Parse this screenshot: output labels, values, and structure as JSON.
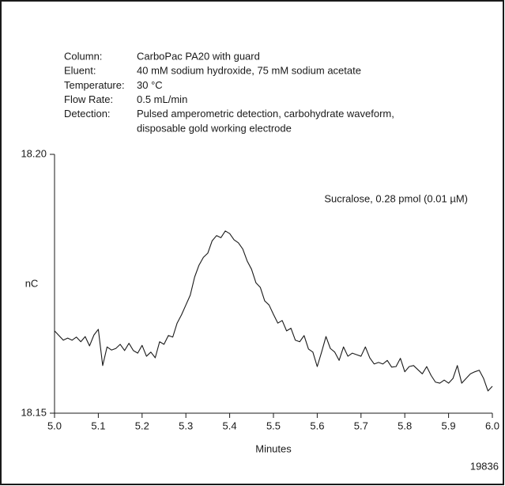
{
  "chart_data": {
    "type": "line",
    "conditions": [
      {
        "label": "Column:",
        "lines": [
          "CarboPac PA20 with guard"
        ]
      },
      {
        "label": "Eluent:",
        "lines": [
          "40 mM sodium hydroxide, 75 mM sodium acetate"
        ]
      },
      {
        "label": "Temperature:",
        "lines": [
          "30 °C"
        ]
      },
      {
        "label": "Flow Rate:",
        "lines": [
          "0.5 mL/min"
        ]
      },
      {
        "label": "Detection:",
        "lines": [
          "Pulsed amperometric detection, carbohydrate waveform,",
          "disposable gold working electrode"
        ]
      }
    ],
    "annotation": "Sucralose, 0.28 pmol (0.01 µM)",
    "y_label": "nC",
    "x_label": "Minutes",
    "figure_number": "19836",
    "color": "#1a1a1a",
    "xlim": [
      5,
      6
    ],
    "ylim": [
      18.15,
      18.2
    ],
    "xticks": [
      {
        "value": 5,
        "label": "5.0"
      },
      5.1,
      5.2,
      5.3,
      5.4,
      5.5,
      5.6,
      5.7,
      5.8,
      5.9,
      {
        "value": 6,
        "label": "6.0"
      }
    ],
    "yticks": [
      18.15,
      {
        "value": 18.2,
        "label": "18.20"
      }
    ],
    "x": [
      5,
      5.01,
      5.02,
      5.03,
      5.04,
      5.05,
      5.06,
      5.07,
      5.08,
      5.09,
      5.1,
      5.11,
      5.12,
      5.13,
      5.14,
      5.15,
      5.16,
      5.17,
      5.18,
      5.19,
      5.2,
      5.21,
      5.22,
      5.23,
      5.24,
      5.25,
      5.26,
      5.27,
      5.28,
      5.29,
      5.3,
      5.31,
      5.32,
      5.33,
      5.34,
      5.35,
      5.36,
      5.37,
      5.38,
      5.39,
      5.4,
      5.41,
      5.42,
      5.43,
      5.44,
      5.45,
      5.46,
      5.47,
      5.48,
      5.49,
      5.5,
      5.51,
      5.52,
      5.53,
      5.54,
      5.55,
      5.56,
      5.57,
      5.58,
      5.59,
      5.6,
      5.61,
      5.62,
      5.63,
      5.64,
      5.65,
      5.66,
      5.67,
      5.68,
      5.69,
      5.7,
      5.71,
      5.72,
      5.73,
      5.74,
      5.75,
      5.76,
      5.77,
      5.78,
      5.79,
      5.8,
      5.81,
      5.82,
      5.83,
      5.84,
      5.85,
      5.86,
      5.87,
      5.88,
      5.89,
      5.9,
      5.91,
      5.92,
      5.93,
      5.94,
      5.95,
      5.96,
      5.97,
      5.98,
      5.99,
      6
    ],
    "values": [
      18.1659,
      18.165,
      18.1641,
      18.1645,
      18.1641,
      18.1647,
      18.1638,
      18.1648,
      18.163,
      18.1651,
      18.1662,
      18.1592,
      18.1628,
      18.1622,
      18.1625,
      18.1633,
      18.1621,
      18.1635,
      18.1621,
      18.1616,
      18.1631,
      18.161,
      18.1618,
      18.1607,
      18.1638,
      18.1633,
      18.165,
      18.1647,
      18.1674,
      18.169,
      18.1709,
      18.1728,
      18.1763,
      18.1786,
      18.1801,
      18.1809,
      18.1833,
      18.1843,
      18.1839,
      18.1852,
      18.1847,
      18.1835,
      18.1829,
      18.1817,
      18.1794,
      18.1778,
      18.1752,
      18.1743,
      18.1717,
      18.1709,
      18.1691,
      18.1674,
      18.1679,
      18.1659,
      18.1664,
      18.1641,
      18.1638,
      18.165,
      18.1624,
      18.1618,
      18.159,
      18.1618,
      18.1648,
      18.1625,
      18.1618,
      18.1602,
      18.1628,
      18.161,
      18.1616,
      18.1613,
      18.161,
      18.1628,
      18.1607,
      18.1595,
      18.1598,
      18.1595,
      18.1602,
      18.1589,
      18.159,
      18.1606,
      18.158,
      18.159,
      18.1592,
      18.1584,
      18.1576,
      18.159,
      18.1573,
      18.156,
      18.1558,
      18.1564,
      18.1558,
      18.1567,
      18.1592,
      18.1558,
      18.1567,
      18.1576,
      18.158,
      18.1583,
      18.1567,
      18.1543,
      18.1552
    ]
  }
}
